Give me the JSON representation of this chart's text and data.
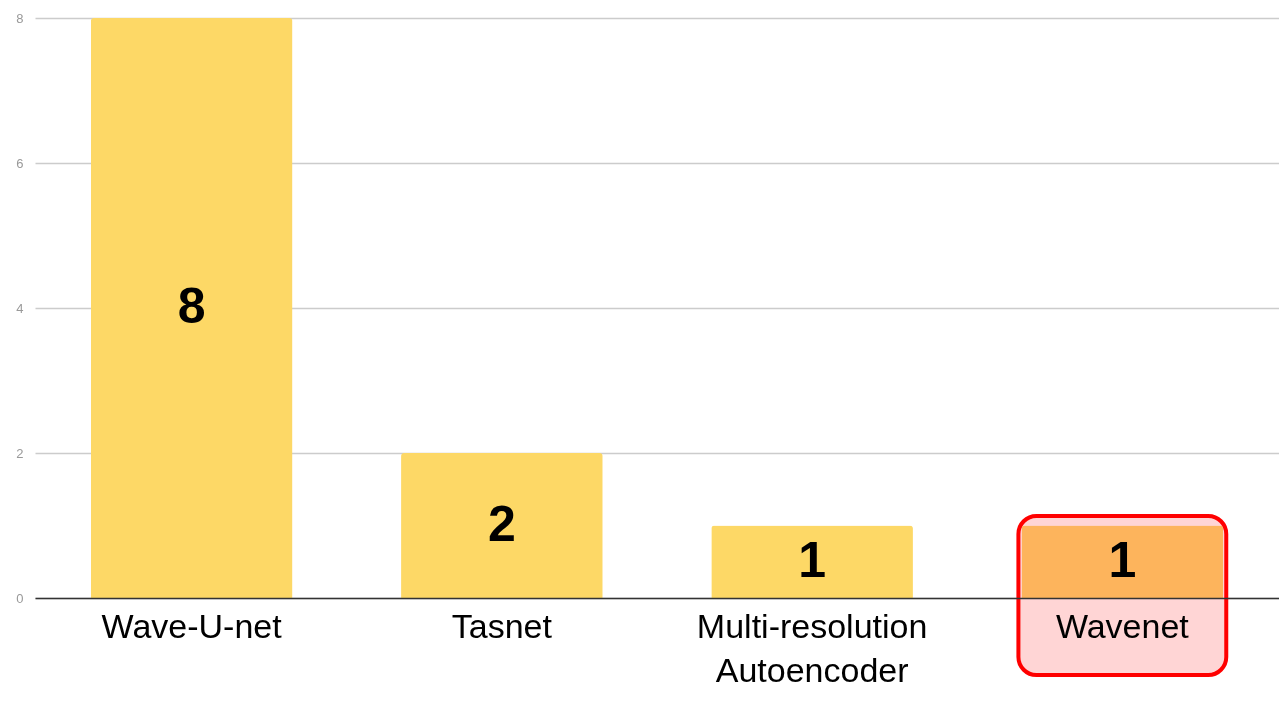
{
  "chart_data": {
    "type": "bar",
    "categories": [
      "Wave-U-net",
      "Tasnet",
      "Multi-resolution Autoencoder",
      "Wavenet"
    ],
    "values": [
      8,
      2,
      1,
      1
    ],
    "colors": [
      "#fdd866",
      "#fdd866",
      "#fdd866",
      "#fdb45c"
    ],
    "ylim": [
      0,
      8
    ],
    "yticks": [
      0,
      2,
      4,
      6,
      8
    ],
    "grid": "y",
    "data_labels": true,
    "bands": [
      {
        "axis": "x",
        "from": "Wavenet",
        "to": "Wavenet",
        "color": "#ffd5d5"
      }
    ]
  }
}
